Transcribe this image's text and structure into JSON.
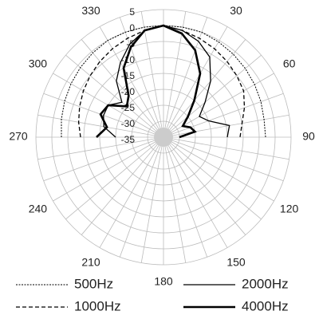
{
  "chart_data": {
    "type": "polar",
    "theta": [
      270,
      280,
      290,
      300,
      310,
      320,
      330,
      340,
      350,
      0,
      10,
      20,
      30,
      40,
      50,
      60,
      70,
      80,
      90
    ],
    "series": [
      {
        "name": "500Hz",
        "color": "#000000",
        "linestyle": "dotted",
        "width": 1,
        "values": [
          -3,
          -2.5,
          -2,
          -1.5,
          -1,
          -0.5,
          0,
          0,
          0,
          0,
          0,
          0,
          -0.5,
          -1,
          -1.5,
          -2,
          -2.5,
          -3,
          -3
        ]
      },
      {
        "name": "1000Hz",
        "color": "#000000",
        "linestyle": "dashed",
        "width": 1.3,
        "values": [
          -9,
          -8,
          -7,
          -6,
          -5,
          -4,
          -3,
          -2,
          -1,
          0,
          -1,
          -2,
          -3,
          -4,
          -5,
          -6,
          -8,
          -10,
          -11
        ]
      },
      {
        "name": "2000Hz",
        "color": "#000000",
        "linestyle": "solid",
        "width": 1.3,
        "values": [
          -20,
          -16,
          -15,
          -15,
          -18,
          -12,
          -8,
          -4,
          -1,
          0,
          -1,
          -3,
          -6,
          -12,
          -18,
          -22,
          -20,
          -14,
          -15
        ]
      },
      {
        "name": "4000Hz",
        "color": "#000000",
        "linestyle": "solid",
        "width": 2.6,
        "values": [
          -14,
          -17,
          -14,
          -15,
          -20,
          -18,
          -10,
          -5,
          -1,
          0,
          -2,
          -6,
          -12,
          -20,
          -25,
          -28,
          -26,
          -25,
          -30
        ]
      }
    ],
    "rlim": [
      -35,
      5
    ],
    "rticks": [
      5,
      0,
      -5,
      -10,
      -15,
      -20,
      -25,
      -30,
      -35
    ],
    "thetaticks": [
      0,
      30,
      60,
      90,
      120,
      150,
      180,
      210,
      240,
      270,
      300,
      330
    ],
    "grid": true
  }
}
